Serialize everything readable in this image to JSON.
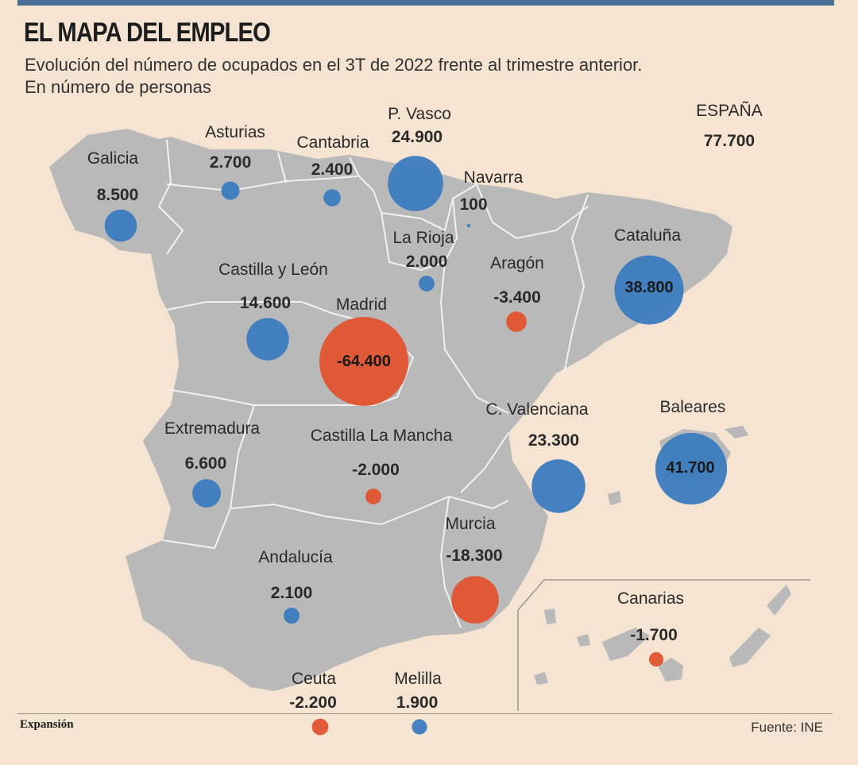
{
  "header": {
    "title": "EL MAPA DEL EMPLEO",
    "subtitle_line1": "Evolución del número de ocupados en el 3T de 2022 frente al trimestre anterior.",
    "subtitle_line2": "En número de personas"
  },
  "total": {
    "name": "ESPAÑA",
    "value": "77.700"
  },
  "regions": {
    "galicia": {
      "name": "Galicia",
      "value": "8.500",
      "change": 8500
    },
    "asturias": {
      "name": "Asturias",
      "value": "2.700",
      "change": 2700
    },
    "cantabria": {
      "name": "Cantabria",
      "value": "2.400",
      "change": 2400
    },
    "pvasco": {
      "name": "P. Vasco",
      "value": "24.900",
      "change": 24900
    },
    "navarra": {
      "name": "Navarra",
      "value": "100",
      "change": 100
    },
    "larioja": {
      "name": "La Rioja",
      "value": "2.000",
      "change": 2000
    },
    "aragon": {
      "name": "Aragón",
      "value": "-3.400",
      "change": -3400
    },
    "cataluna": {
      "name": "Cataluña",
      "value": "38.800",
      "change": 38800
    },
    "castillayleon": {
      "name": "Castilla y León",
      "value": "14.600",
      "change": 14600
    },
    "madrid": {
      "name": "Madrid",
      "value": "-64.400",
      "change": -64400
    },
    "extremadura": {
      "name": "Extremadura",
      "value": "6.600",
      "change": 6600
    },
    "castillalamancha": {
      "name": "Castilla La Mancha",
      "value": "-2.000",
      "change": -2000
    },
    "cvalenciana": {
      "name": "C. Valenciana",
      "value": "23.300",
      "change": 23300
    },
    "baleares": {
      "name": "Baleares",
      "value": "41.700",
      "change": 41700
    },
    "murcia": {
      "name": "Murcia",
      "value": "-18.300",
      "change": -18300
    },
    "andalucia": {
      "name": "Andalucía",
      "value": "2.100",
      "change": 2100
    },
    "canarias": {
      "name": "Canarias",
      "value": "-1.700",
      "change": -1700
    },
    "ceuta": {
      "name": "Ceuta",
      "value": "-2.200",
      "change": -2200
    },
    "melilla": {
      "name": "Melilla",
      "value": "1.900",
      "change": 1900
    }
  },
  "colors": {
    "positive": "#3b7bbf",
    "negative": "#e0532f",
    "land": "#b9b9b9",
    "background": "#f5e4d1",
    "borders": "#f2f2f2"
  },
  "footer": {
    "brand": "Expansión",
    "source": "Fuente: INE"
  }
}
